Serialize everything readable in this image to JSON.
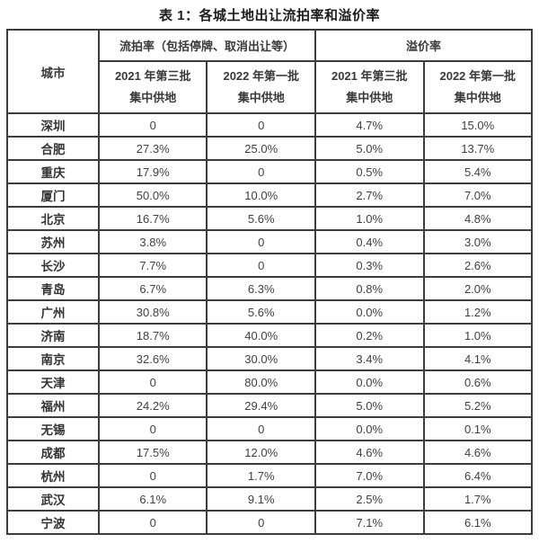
{
  "title": "表 1：各城土地出让流拍率和溢价率",
  "table": {
    "city_header": "城市",
    "group_headers": [
      {
        "label": "流拍率（包括停牌、取消出让等）"
      },
      {
        "label": "溢价率"
      }
    ],
    "sub_headers": [
      {
        "line1": "2021 年第三批",
        "line2": "集中供地"
      },
      {
        "line1": "2022 年第一批",
        "line2": "集中供地"
      },
      {
        "line1": "2021 年第三批",
        "line2": "集中供地"
      },
      {
        "line1": "2022 年第一批",
        "line2": "集中供地"
      }
    ],
    "rows": [
      {
        "city": "深圳",
        "values": [
          "0",
          "0",
          "4.7%",
          "15.0%"
        ]
      },
      {
        "city": "合肥",
        "values": [
          "27.3%",
          "25.0%",
          "5.0%",
          "13.7%"
        ]
      },
      {
        "city": "重庆",
        "values": [
          "17.9%",
          "0",
          "0.5%",
          "5.4%"
        ]
      },
      {
        "city": "厦门",
        "values": [
          "50.0%",
          "10.0%",
          "2.7%",
          "7.0%"
        ]
      },
      {
        "city": "北京",
        "values": [
          "16.7%",
          "5.6%",
          "1.0%",
          "4.8%"
        ]
      },
      {
        "city": "苏州",
        "values": [
          "3.8%",
          "0",
          "0.4%",
          "3.0%"
        ]
      },
      {
        "city": "长沙",
        "values": [
          "7.7%",
          "0",
          "0.3%",
          "2.6%"
        ]
      },
      {
        "city": "青岛",
        "values": [
          "6.7%",
          "6.3%",
          "0.8%",
          "2.0%"
        ]
      },
      {
        "city": "广州",
        "values": [
          "30.8%",
          "5.6%",
          "0.0%",
          "1.2%"
        ]
      },
      {
        "city": "济南",
        "values": [
          "18.7%",
          "40.0%",
          "0.2%",
          "1.0%"
        ]
      },
      {
        "city": "南京",
        "values": [
          "32.6%",
          "30.0%",
          "3.4%",
          "4.1%"
        ]
      },
      {
        "city": "天津",
        "values": [
          "0",
          "80.0%",
          "0.0%",
          "0.6%"
        ]
      },
      {
        "city": "福州",
        "values": [
          "24.2%",
          "29.4%",
          "5.0%",
          "5.2%"
        ]
      },
      {
        "city": "无锡",
        "values": [
          "0",
          "0",
          "0.0%",
          "0.1%"
        ]
      },
      {
        "city": "成都",
        "values": [
          "17.5%",
          "12.0%",
          "4.6%",
          "4.6%"
        ]
      },
      {
        "city": "杭州",
        "values": [
          "0",
          "1.7%",
          "7.0%",
          "6.4%"
        ]
      },
      {
        "city": "武汉",
        "values": [
          "6.1%",
          "9.1%",
          "2.5%",
          "1.7%"
        ]
      },
      {
        "city": "宁波",
        "values": [
          "0",
          "0",
          "7.1%",
          "6.1%"
        ]
      }
    ]
  },
  "chart_data": {
    "type": "table",
    "title": "表 1：各城土地出让流拍率和溢价率",
    "columns": [
      "城市",
      "流拍率（包括停牌、取消出让等）2021 年第三批集中供地",
      "流拍率（包括停牌、取消出让等）2022 年第一批集中供地",
      "溢价率 2021 年第三批集中供地",
      "溢价率 2022 年第一批集中供地"
    ],
    "rows": [
      [
        "深圳",
        "0",
        "0",
        "4.7%",
        "15.0%"
      ],
      [
        "合肥",
        "27.3%",
        "25.0%",
        "5.0%",
        "13.7%"
      ],
      [
        "重庆",
        "17.9%",
        "0",
        "0.5%",
        "5.4%"
      ],
      [
        "厦门",
        "50.0%",
        "10.0%",
        "2.7%",
        "7.0%"
      ],
      [
        "北京",
        "16.7%",
        "5.6%",
        "1.0%",
        "4.8%"
      ],
      [
        "苏州",
        "3.8%",
        "0",
        "0.4%",
        "3.0%"
      ],
      [
        "长沙",
        "7.7%",
        "0",
        "0.3%",
        "2.6%"
      ],
      [
        "青岛",
        "6.7%",
        "6.3%",
        "0.8%",
        "2.0%"
      ],
      [
        "广州",
        "30.8%",
        "5.6%",
        "0.0%",
        "1.2%"
      ],
      [
        "济南",
        "18.7%",
        "40.0%",
        "0.2%",
        "1.0%"
      ],
      [
        "南京",
        "32.6%",
        "30.0%",
        "3.4%",
        "4.1%"
      ],
      [
        "天津",
        "0",
        "80.0%",
        "0.0%",
        "0.6%"
      ],
      [
        "福州",
        "24.2%",
        "29.4%",
        "5.0%",
        "5.2%"
      ],
      [
        "无锡",
        "0",
        "0",
        "0.0%",
        "0.1%"
      ],
      [
        "成都",
        "17.5%",
        "12.0%",
        "4.6%",
        "4.6%"
      ],
      [
        "杭州",
        "0",
        "1.7%",
        "7.0%",
        "6.4%"
      ],
      [
        "武汉",
        "6.1%",
        "9.1%",
        "2.5%",
        "1.7%"
      ],
      [
        "宁波",
        "0",
        "0",
        "7.1%",
        "6.1%"
      ]
    ],
    "colors": {
      "border": "#3c3c3e",
      "text": "#39393d",
      "background": "#ffffff"
    }
  }
}
